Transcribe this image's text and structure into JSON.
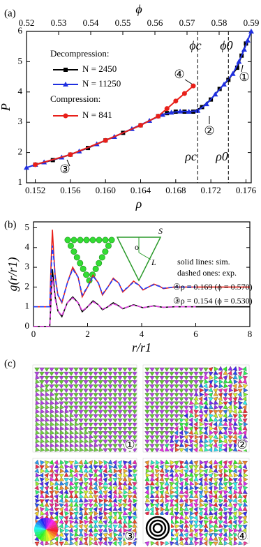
{
  "chart_data": [
    {
      "type": "line",
      "panel_label": "(a)",
      "xlabel": "ρ",
      "ylabel": "P",
      "x2label": "ϕ",
      "xlim": [
        0.151,
        0.1766
      ],
      "xticks": [
        0.152,
        0.156,
        {
          "value": 0.16,
          "label": "0.160"
        },
        0.164,
        0.168,
        0.172,
        0.176
      ],
      "x2lim": [
        0.52,
        0.59
      ],
      "x2ticks": [
        0.52,
        0.53,
        0.54,
        0.55,
        0.56,
        0.57,
        0.58,
        0.59
      ],
      "ylim": [
        1,
        6
      ],
      "yticks": [
        1,
        2,
        3,
        4,
        5,
        6
      ],
      "legend_headers": [
        "Decompression:",
        "Compression:"
      ],
      "series": [
        {
          "name": "N = 2450",
          "color": "#000000",
          "marker": "square",
          "x": [
            0.152,
            0.154,
            0.156,
            0.158,
            0.16,
            0.162,
            0.164,
            0.166,
            0.167,
            0.168,
            0.169,
            0.17,
            0.171,
            0.172,
            0.173,
            0.174,
            0.175,
            0.1755,
            0.176
          ],
          "values": [
            1.6,
            1.75,
            1.93,
            2.15,
            2.4,
            2.65,
            2.9,
            3.2,
            3.3,
            3.35,
            3.35,
            3.35,
            3.5,
            3.75,
            4.1,
            4.4,
            4.8,
            5.2,
            5.6
          ]
        },
        {
          "name": "N = 11250",
          "color": "#1f2fe0",
          "marker": "triangle",
          "x": [
            0.151,
            0.152,
            0.153,
            0.155,
            0.157,
            0.159,
            0.161,
            0.163,
            0.165,
            0.1665,
            0.1675,
            0.1685,
            0.1695,
            0.1705,
            0.1715,
            0.1725,
            0.1735,
            0.1745,
            0.1752,
            0.1758,
            0.1762,
            0.1766
          ],
          "values": [
            1.5,
            1.6,
            1.68,
            1.84,
            2.04,
            2.28,
            2.52,
            2.78,
            3.05,
            3.25,
            3.32,
            3.36,
            3.35,
            3.38,
            3.6,
            3.92,
            4.25,
            4.6,
            5.0,
            5.4,
            5.7,
            6.0
          ]
        },
        {
          "name": "N = 841",
          "color": "#e8201a",
          "marker": "circle",
          "x": [
            0.152,
            0.156,
            0.16,
            0.164,
            0.166,
            0.167,
            0.168,
            0.169,
            0.17
          ],
          "values": [
            1.6,
            1.93,
            2.4,
            2.9,
            3.2,
            3.45,
            3.7,
            3.95,
            4.2
          ]
        }
      ],
      "vlines": [
        {
          "value": 0.1705,
          "label_top": "ϕc",
          "label_bottom": "ρc"
        },
        {
          "value": 0.174,
          "label_top": "ϕ0",
          "label_bottom": "ρ0"
        }
      ],
      "annotations": [
        "①",
        "②",
        "③",
        "④"
      ]
    },
    {
      "type": "line",
      "panel_label": "(b)",
      "xlabel": "r/r1",
      "ylabel": "g(r/r1)",
      "xlim": [
        0,
        8
      ],
      "xticks": [
        0,
        2,
        4,
        6,
        8
      ],
      "ylim": [
        0,
        5.3
      ],
      "yticks": [
        0,
        1,
        2,
        3,
        4,
        5
      ],
      "x": [
        0,
        0.6,
        0.65,
        0.7,
        0.75,
        0.8,
        0.9,
        1.05,
        1.25,
        1.45,
        1.65,
        1.8,
        2.0,
        2.2,
        2.4,
        2.55,
        2.75,
        2.95,
        3.15,
        3.3,
        3.5,
        3.7,
        3.9,
        4.05,
        4.25,
        4.45,
        4.65,
        4.8,
        5.2,
        6.0,
        8.0
      ],
      "series": [
        {
          "color": "#e8201a",
          "dashed": false,
          "values": [
            1,
            1,
            3.2,
            4.9,
            3.6,
            2.6,
            1.6,
            1.2,
            2.2,
            3.0,
            2.5,
            1.5,
            2.0,
            2.6,
            2.2,
            1.6,
            2.0,
            2.45,
            2.2,
            1.75,
            2.0,
            2.3,
            2.1,
            1.85,
            2.0,
            2.15,
            2.05,
            1.92,
            2.0,
            2.0,
            2.0
          ]
        },
        {
          "color": "#2040ff",
          "dashed": true,
          "values": [
            1,
            1,
            2.8,
            4.1,
            3.4,
            2.5,
            1.6,
            1.25,
            2.2,
            2.9,
            2.5,
            1.6,
            2.0,
            2.55,
            2.2,
            1.65,
            2.0,
            2.4,
            2.2,
            1.8,
            2.0,
            2.25,
            2.1,
            1.88,
            2.0,
            2.12,
            2.04,
            1.94,
            2.0,
            2.0,
            null
          ]
        },
        {
          "color": "#000000",
          "dashed": false,
          "values": [
            0,
            0,
            1.4,
            2.9,
            2.2,
            1.5,
            0.8,
            0.5,
            1.2,
            1.5,
            1.2,
            0.75,
            1.0,
            1.3,
            1.1,
            0.85,
            1.0,
            1.2,
            1.05,
            0.9,
            1.0,
            1.1,
            1.02,
            0.95,
            1.0,
            1.05,
            1.0,
            0.97,
            1.0,
            1.0,
            1.0
          ]
        },
        {
          "color": "#e040e0",
          "dashed": true,
          "values": [
            0,
            0,
            1.3,
            2.5,
            2.0,
            1.4,
            0.8,
            0.55,
            1.2,
            1.45,
            1.2,
            0.8,
            1.0,
            1.25,
            1.1,
            0.88,
            1.0,
            1.15,
            1.05,
            0.92,
            1.0,
            1.08,
            1.02,
            0.96,
            1.0,
            1.04,
            1.0,
            0.98,
            1.0,
            1.0,
            null
          ]
        }
      ],
      "annotations": [
        "solid lines: sim.",
        "dashed ones: exp.",
        "④ρ = 0.169 (ϕ = 0.570)",
        "③ρ = 0.154 (ϕ = 0.530)"
      ],
      "inset_labels": [
        "S",
        "o",
        "L"
      ]
    }
  ],
  "panel_c": {
    "label": "(c)",
    "images": [
      "①",
      "②",
      "③",
      "④"
    ]
  }
}
